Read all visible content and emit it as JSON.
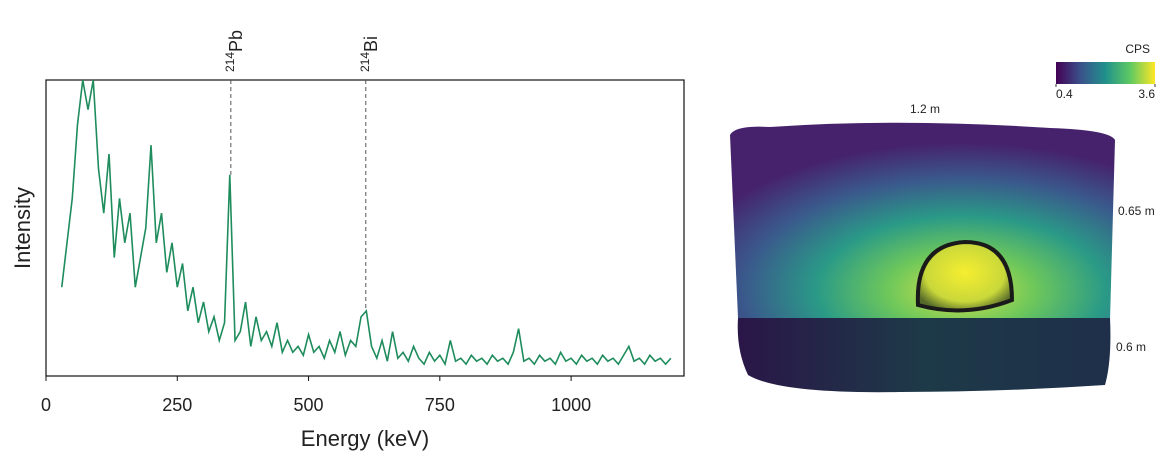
{
  "chart_data": {
    "type": "line",
    "xlabel": "Energy (keV)",
    "ylabel": "Intensity",
    "xlim": [
      0,
      1215
    ],
    "ylim": [
      0,
      100
    ],
    "xticks": [
      0,
      250,
      500,
      750,
      1000
    ],
    "series": [
      {
        "color": "#1e8c5c",
        "x": [
          30,
          40,
          50,
          60,
          70,
          80,
          90,
          100,
          110,
          120,
          130,
          140,
          150,
          160,
          170,
          180,
          190,
          200,
          210,
          220,
          230,
          240,
          250,
          260,
          270,
          280,
          290,
          300,
          310,
          320,
          330,
          340,
          350,
          360,
          370,
          380,
          390,
          400,
          410,
          420,
          430,
          440,
          450,
          460,
          470,
          480,
          490,
          500,
          510,
          520,
          530,
          540,
          550,
          560,
          570,
          580,
          590,
          600,
          610,
          620,
          630,
          640,
          650,
          660,
          670,
          680,
          690,
          700,
          710,
          720,
          730,
          740,
          750,
          760,
          770,
          780,
          790,
          800,
          810,
          820,
          830,
          840,
          850,
          860,
          870,
          880,
          890,
          900,
          910,
          920,
          930,
          940,
          950,
          960,
          970,
          980,
          990,
          1000,
          1010,
          1020,
          1030,
          1040,
          1050,
          1060,
          1070,
          1080,
          1090,
          1100,
          1110,
          1120,
          1130,
          1140,
          1150,
          1160,
          1170,
          1180,
          1190
        ],
        "values": [
          30,
          45,
          60,
          85,
          100,
          90,
          100,
          70,
          55,
          75,
          40,
          60,
          45,
          55,
          30,
          40,
          50,
          78,
          45,
          55,
          35,
          45,
          30,
          38,
          22,
          30,
          18,
          25,
          15,
          20,
          12,
          18,
          68,
          12,
          15,
          25,
          10,
          20,
          12,
          15,
          10,
          18,
          8,
          12,
          8,
          10,
          7,
          14,
          8,
          10,
          6,
          12,
          8,
          15,
          7,
          12,
          10,
          20,
          22,
          10,
          6,
          12,
          5,
          15,
          6,
          8,
          5,
          10,
          6,
          4,
          8,
          5,
          7,
          4,
          12,
          5,
          6,
          4,
          7,
          5,
          6,
          4,
          7,
          5,
          6,
          4,
          8,
          16,
          5,
          6,
          4,
          7,
          5,
          6,
          4,
          8,
          5,
          6,
          4,
          7,
          5,
          6,
          4,
          7,
          5,
          6,
          4,
          7,
          10,
          5,
          6,
          4,
          7,
          5,
          6,
          4,
          6
        ]
      }
    ],
    "annotations": [
      {
        "x": 352,
        "y": 68,
        "mass": "214",
        "symbol": "Pb"
      },
      {
        "x": 609,
        "y": 22,
        "mass": "214",
        "symbol": "Bi"
      }
    ],
    "colorbar": {
      "label": "CPS",
      "lim": [
        0.4,
        3.6
      ],
      "ticks": [
        0.4,
        3.6
      ]
    },
    "dimensions": [
      "1.2 m",
      "0.65 m",
      "0.6 m"
    ]
  }
}
